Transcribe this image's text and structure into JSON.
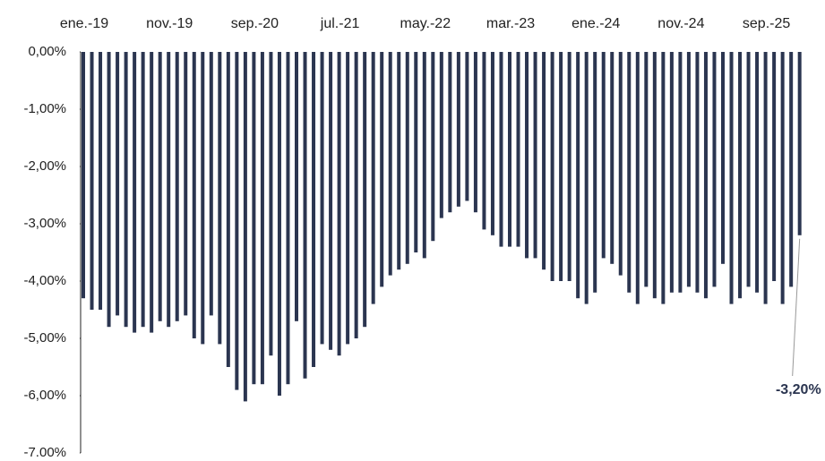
{
  "chart_data": {
    "type": "bar",
    "categories": [
      "ene.-19",
      null,
      null,
      null,
      null,
      null,
      null,
      null,
      null,
      null,
      "nov.-19",
      null,
      null,
      null,
      null,
      null,
      null,
      null,
      null,
      null,
      "sep.-20",
      null,
      null,
      null,
      null,
      null,
      null,
      null,
      null,
      null,
      "jul.-21",
      null,
      null,
      null,
      null,
      null,
      null,
      null,
      null,
      null,
      "may.-22",
      null,
      null,
      null,
      null,
      null,
      null,
      null,
      null,
      null,
      "mar.-23",
      null,
      null,
      null,
      null,
      null,
      null,
      null,
      null,
      null,
      "ene.-24",
      null,
      null,
      null,
      null,
      null,
      null,
      null,
      null,
      null,
      "nov.-24",
      null,
      null,
      null,
      null,
      null,
      null,
      null,
      null,
      null,
      "sep.-25",
      null,
      null,
      null,
      null
    ],
    "values": [
      -4.3,
      -4.5,
      -4.5,
      -4.8,
      -4.6,
      -4.8,
      -4.9,
      -4.8,
      -4.9,
      -4.7,
      -4.8,
      -4.7,
      -4.6,
      -5.0,
      -5.1,
      -4.6,
      -5.1,
      -5.5,
      -5.9,
      -6.1,
      -5.8,
      -5.8,
      -5.3,
      -6.0,
      -5.8,
      -4.7,
      -5.7,
      -5.5,
      -5.1,
      -5.2,
      -5.3,
      -5.1,
      -5.0,
      -4.8,
      -4.4,
      -4.1,
      -3.9,
      -3.8,
      -3.7,
      -3.5,
      -3.6,
      -3.3,
      -2.9,
      -2.8,
      -2.7,
      -2.6,
      -2.8,
      -3.1,
      -3.2,
      -3.4,
      -3.4,
      -3.4,
      -3.6,
      -3.6,
      -3.8,
      -4.0,
      -4.0,
      -4.0,
      -4.3,
      -4.4,
      -4.2,
      -3.6,
      -3.7,
      -3.9,
      -4.2,
      -4.4,
      -4.1,
      -4.3,
      -4.4,
      -4.2,
      -4.2,
      -4.1,
      -4.2,
      -4.3,
      -4.1,
      -3.7,
      -4.4,
      -4.3,
      -4.1,
      -4.2,
      -4.4,
      -4.0,
      -4.4,
      -4.1,
      -3.2
    ],
    "value_labels": [
      null,
      null,
      null,
      null,
      null,
      null,
      null,
      null,
      null,
      null,
      null,
      null,
      null,
      null,
      null,
      null,
      null,
      null,
      null,
      null,
      null,
      null,
      null,
      null,
      null,
      null,
      null,
      null,
      null,
      null,
      null,
      null,
      null,
      null,
      null,
      null,
      null,
      null,
      null,
      null,
      null,
      null,
      null,
      null,
      null,
      null,
      null,
      null,
      null,
      null,
      null,
      null,
      null,
      null,
      null,
      null,
      null,
      null,
      null,
      null,
      null,
      null,
      null,
      null,
      null,
      null,
      null,
      null,
      null,
      null,
      null,
      null,
      null,
      null,
      null,
      null,
      null,
      null,
      null,
      null,
      null,
      null,
      null,
      null,
      "-3,20%"
    ],
    "color": "#2b3550",
    "ylim": [
      -7,
      0
    ],
    "yticks": [
      {
        "value": 0,
        "label": "0,00%"
      },
      {
        "value": -1,
        "label": "-1,00%"
      },
      {
        "value": -2,
        "label": "-2,00%"
      },
      {
        "value": -3,
        "label": "-3,00%"
      },
      {
        "value": -4,
        "label": "-4,00%"
      },
      {
        "value": -5,
        "label": "-5,00%"
      },
      {
        "value": -6,
        "label": "-6,00%"
      },
      {
        "value": -7,
        "label": "-7.00%"
      }
    ],
    "grid": false
  }
}
